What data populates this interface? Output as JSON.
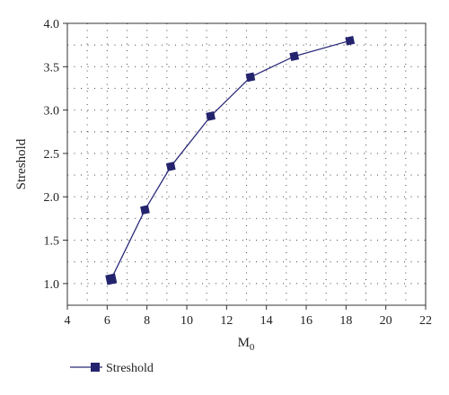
{
  "chart_data": {
    "type": "line",
    "xlabel": "M",
    "xlabel_subscript": "0",
    "ylabel": "Streshold",
    "xlim": [
      4,
      22
    ],
    "ylim": [
      0.75,
      4.0
    ],
    "x_ticks": [
      4,
      6,
      8,
      10,
      12,
      14,
      16,
      18,
      20,
      22
    ],
    "y_ticks": [
      "1.0",
      "1.5",
      "2.0",
      "2.5",
      "3.0",
      "3.5",
      "4.0"
    ],
    "grid": "dotted",
    "legend_position": "bottom-left",
    "colors": {
      "series": "#2b2b7a",
      "marker": "#24246e",
      "axis": "#333333",
      "grid": "#555555"
    },
    "series": [
      {
        "name": "Streshold",
        "marker": "square",
        "x": [
          6.2,
          7.9,
          9.2,
          11.2,
          13.2,
          15.4,
          18.2
        ],
        "y": [
          1.05,
          1.85,
          2.35,
          2.93,
          3.38,
          3.62,
          3.8
        ]
      }
    ]
  }
}
